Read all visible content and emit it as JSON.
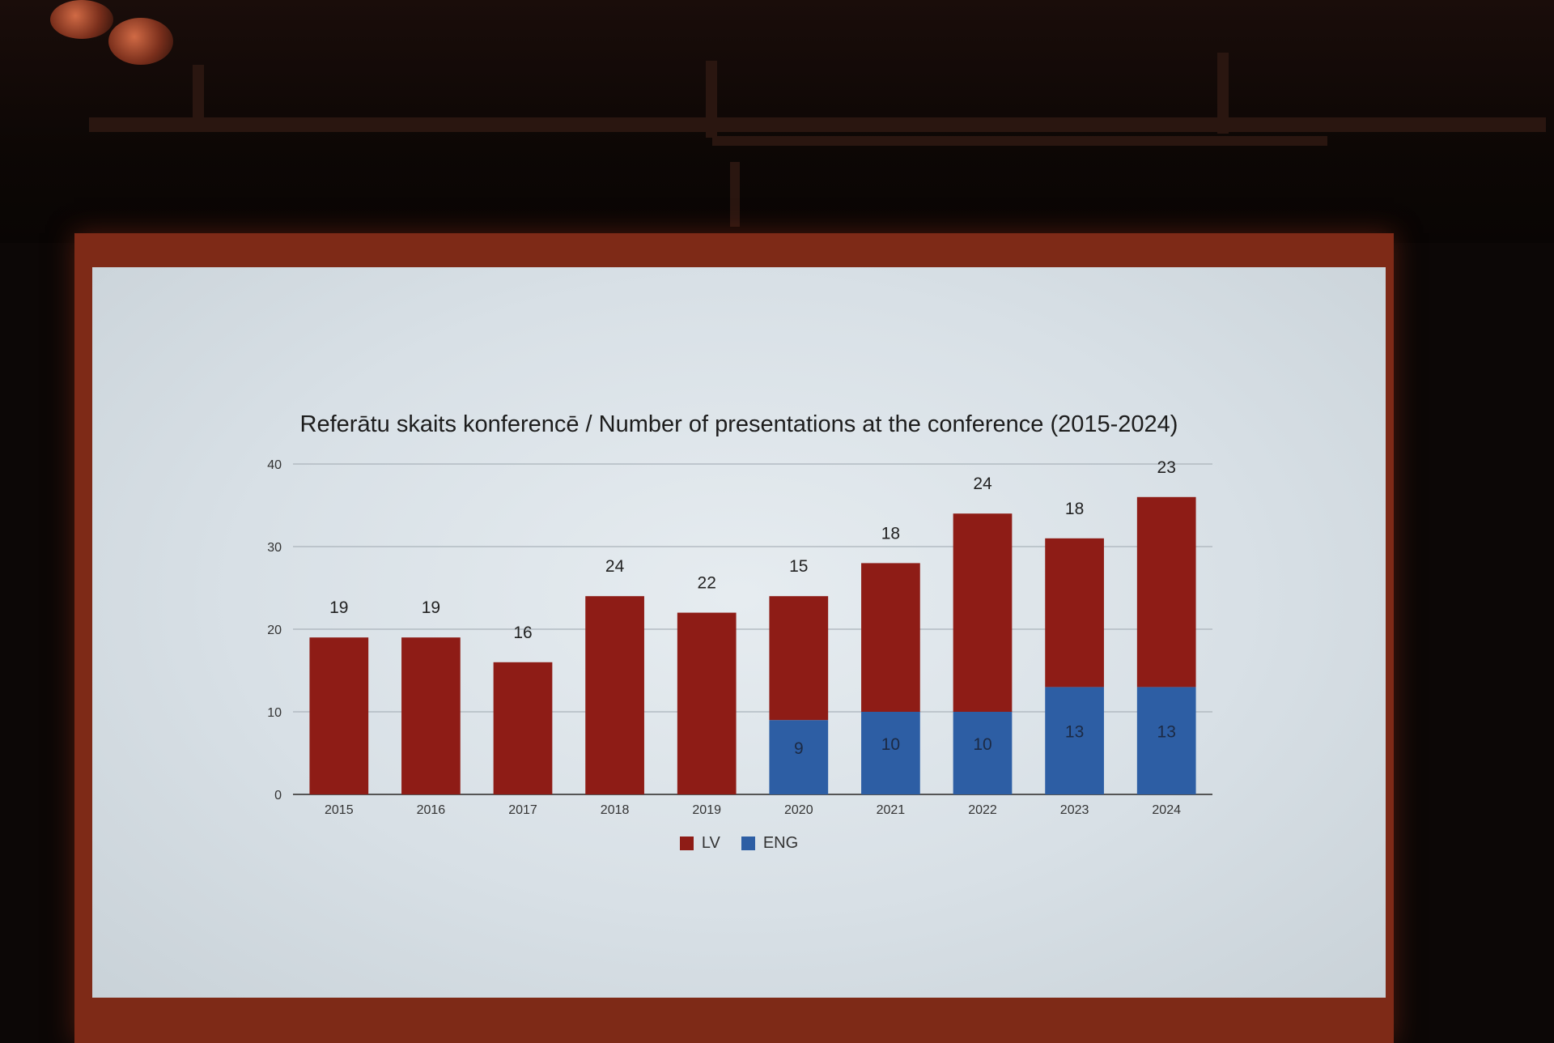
{
  "chart_data": {
    "type": "bar",
    "stacked": true,
    "title": "Referātu skaits konferencē / Number of presentations at the conference (2015-2024)",
    "categories": [
      "2015",
      "2016",
      "2017",
      "2018",
      "2019",
      "2020",
      "2021",
      "2022",
      "2023",
      "2024"
    ],
    "series": [
      {
        "name": "LV",
        "color": "#8e1c16",
        "values": [
          19,
          19,
          16,
          24,
          22,
          15,
          18,
          24,
          18,
          23
        ]
      },
      {
        "name": "ENG",
        "color": "#2d5ea4",
        "values": [
          0,
          0,
          0,
          0,
          0,
          9,
          10,
          10,
          13,
          13
        ]
      }
    ],
    "ylim": [
      0,
      40
    ],
    "yticks": [
      "0",
      "10",
      "20",
      "30",
      "40"
    ],
    "grid": true,
    "legend_position": "bottom"
  }
}
